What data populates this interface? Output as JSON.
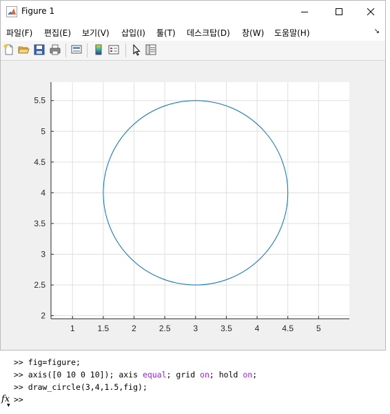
{
  "window": {
    "title": "Figure 1",
    "controls": [
      "minimize",
      "maximize",
      "close"
    ]
  },
  "menu": {
    "items": [
      "파일(F)",
      "편집(E)",
      "보기(V)",
      "삽입(I)",
      "툴(T)",
      "데스크탑(D)",
      "창(W)",
      "도움말(H)"
    ]
  },
  "toolbar": {
    "icons": [
      "new-figure-icon",
      "open-file-icon",
      "save-icon",
      "print-icon",
      "link-plot-icon",
      "insert-colorbar-icon",
      "insert-legend-icon",
      "edit-plot-icon",
      "property-inspector-icon"
    ]
  },
  "colors": {
    "curve": "#0072bd",
    "grid": "#dfdfdf",
    "axis": "#262626",
    "keyword": "#a020f0"
  },
  "chart_data": {
    "type": "line",
    "title": "",
    "xlabel": "",
    "ylabel": "",
    "xlim": [
      0.65,
      5.5
    ],
    "ylim": [
      1.95,
      5.8
    ],
    "grid": true,
    "legend": "none",
    "xticks": [
      "1",
      "1.5",
      "2",
      "2.5",
      "3",
      "3.5",
      "4",
      "4.5",
      "5"
    ],
    "yticks": [
      "2",
      "2.5",
      "3",
      "3.5",
      "4",
      "4.5",
      "5",
      "5.5"
    ],
    "series": [
      {
        "shape": "circle",
        "center": [
          3,
          4
        ],
        "radius": 1.5
      }
    ]
  },
  "command_window": {
    "prompt": ">>",
    "lines": [
      [
        {
          "t": "fig=figure;"
        }
      ],
      [
        {
          "t": "axis([0 10 0 10]); axis "
        },
        {
          "t": "equal",
          "k": true
        },
        {
          "t": "; grid "
        },
        {
          "t": "on",
          "k": true
        },
        {
          "t": "; hold "
        },
        {
          "t": "on",
          "k": true
        },
        {
          "t": ";"
        }
      ],
      [
        {
          "t": "draw_circle(3,4,1.5,fig);"
        }
      ],
      []
    ],
    "fx_label": "fx"
  }
}
